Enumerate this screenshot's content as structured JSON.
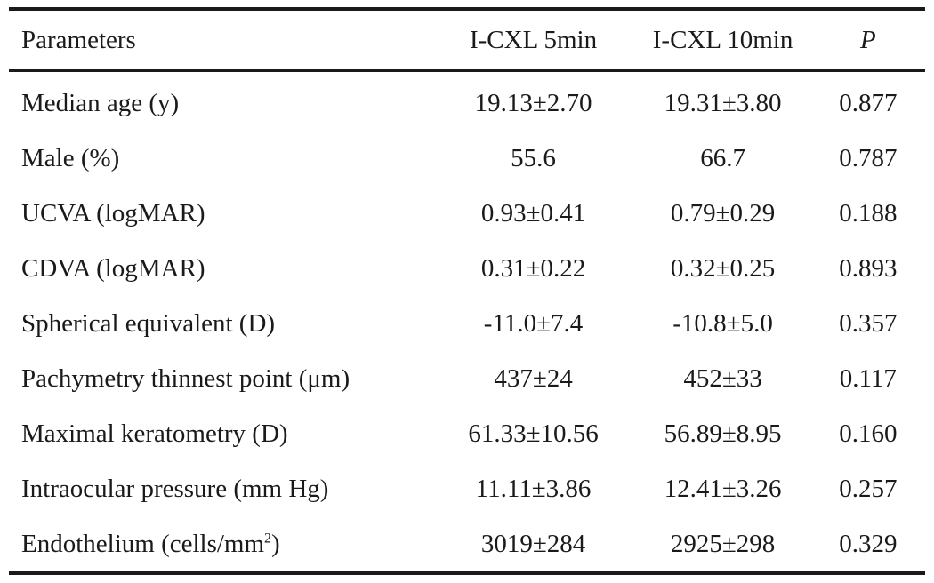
{
  "table": {
    "headers": {
      "parameters": "Parameters",
      "group_5min": "I-CXL 5min",
      "group_10min": "I-CXL 10min",
      "p_value": "P"
    },
    "rows": [
      {
        "parameter": "Median age (y)",
        "group_5min": "19.13±2.70",
        "group_10min": "19.31±3.80",
        "p": "0.877"
      },
      {
        "parameter": "Male (%)",
        "group_5min": "55.6",
        "group_10min": "66.7",
        "p": "0.787"
      },
      {
        "parameter": "UCVA (logMAR)",
        "group_5min": "0.93±0.41",
        "group_10min": "0.79±0.29",
        "p": "0.188"
      },
      {
        "parameter": "CDVA (logMAR)",
        "group_5min": "0.31±0.22",
        "group_10min": "0.32±0.25",
        "p": "0.893"
      },
      {
        "parameter": "Spherical equivalent (D)",
        "group_5min": "-11.0±7.4",
        "group_10min": "-10.8±5.0",
        "p": "0.357"
      },
      {
        "parameter": "Pachymetry thinnest point (μm)",
        "group_5min": "437±24",
        "group_10min": "452±33",
        "p": "0.117"
      },
      {
        "parameter": "Maximal keratometry (D)",
        "group_5min": "61.33±10.56",
        "group_10min": "56.89±8.95",
        "p": "0.160"
      },
      {
        "parameter": "Intraocular pressure (mm Hg)",
        "group_5min": "11.11±3.86",
        "group_10min": "12.41±3.26",
        "p": "0.257"
      },
      {
        "parameter_prefix": "Endothelium (cells/mm",
        "parameter_sup": "2",
        "parameter_suffix": ")",
        "group_5min": "3019±284",
        "group_10min": "2925±298",
        "p": "0.329"
      }
    ]
  }
}
